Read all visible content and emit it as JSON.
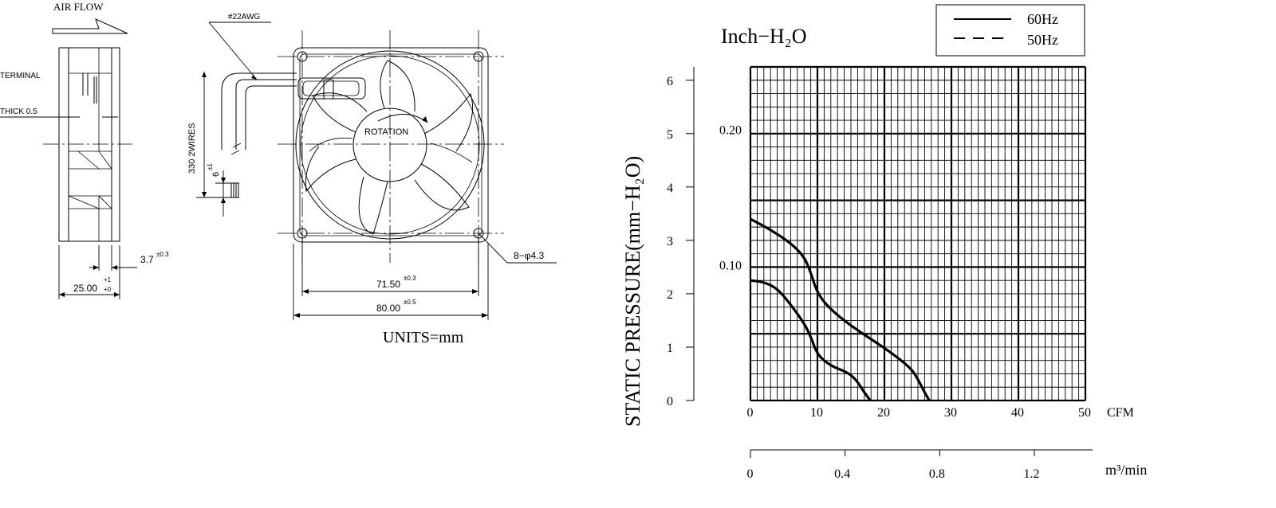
{
  "drawing": {
    "air_flow_label": "AIR FLOW",
    "terminal_label": "TERMINAL",
    "thick_label": "THICK 0.5",
    "awg_label": "#22AWG",
    "wires_label": "330 2WIRES",
    "wire_strip_label": "6",
    "wire_strip_tol": "±1",
    "rotation_label": "ROTATION",
    "holes_label": "8−φ4.3",
    "dim_small": "3.7",
    "dim_small_tol": "±0.3",
    "dim_depth": "25.00",
    "dim_depth_tol_upper": "+1",
    "dim_depth_tol_lower": "+0",
    "dim_hole_pitch": "71.50",
    "dim_hole_pitch_tol": "±0.3",
    "dim_frame": "80.00",
    "dim_frame_tol": "±0.5",
    "units_label": "UNITS=mm"
  },
  "chart_data": {
    "type": "line",
    "unit_label_top": "Inch−H₂O",
    "ylabel": "STATIC PRESSURE(mm−H₂O)",
    "xlabel_unit": "CFM",
    "x2_label_unit": "m³/min",
    "xlim": [
      0,
      50
    ],
    "ylim": [
      0,
      6.2
    ],
    "x_ticks": [
      "0",
      "10",
      "20",
      "30",
      "40",
      "50"
    ],
    "y_ticks": [
      "0",
      "1",
      "2",
      "3",
      "4",
      "5",
      "6"
    ],
    "y2_ticks": [
      "0.20",
      "0.10"
    ],
    "x2_ticks": [
      "0",
      "0.4",
      "0.8",
      "1.2"
    ],
    "legend": [
      {
        "name": "60Hz",
        "style": "solid"
      },
      {
        "name": "50Hz",
        "style": "dashed"
      }
    ],
    "series": [
      {
        "name": "60Hz",
        "x": [
          0,
          3,
          6,
          8,
          9,
          10,
          12,
          15,
          18,
          21,
          24,
          25,
          26,
          26.7
        ],
        "y": [
          3.4,
          3.2,
          2.95,
          2.7,
          2.4,
          2.0,
          1.7,
          1.4,
          1.15,
          0.9,
          0.6,
          0.4,
          0.15,
          0
        ]
      },
      {
        "name": "50Hz",
        "x": [
          0,
          2,
          4,
          6,
          8,
          9,
          10,
          12,
          14,
          15,
          16,
          17,
          17.9
        ],
        "y": [
          2.25,
          2.22,
          2.1,
          1.8,
          1.45,
          1.2,
          0.85,
          0.65,
          0.55,
          0.48,
          0.35,
          0.15,
          0
        ]
      }
    ]
  }
}
